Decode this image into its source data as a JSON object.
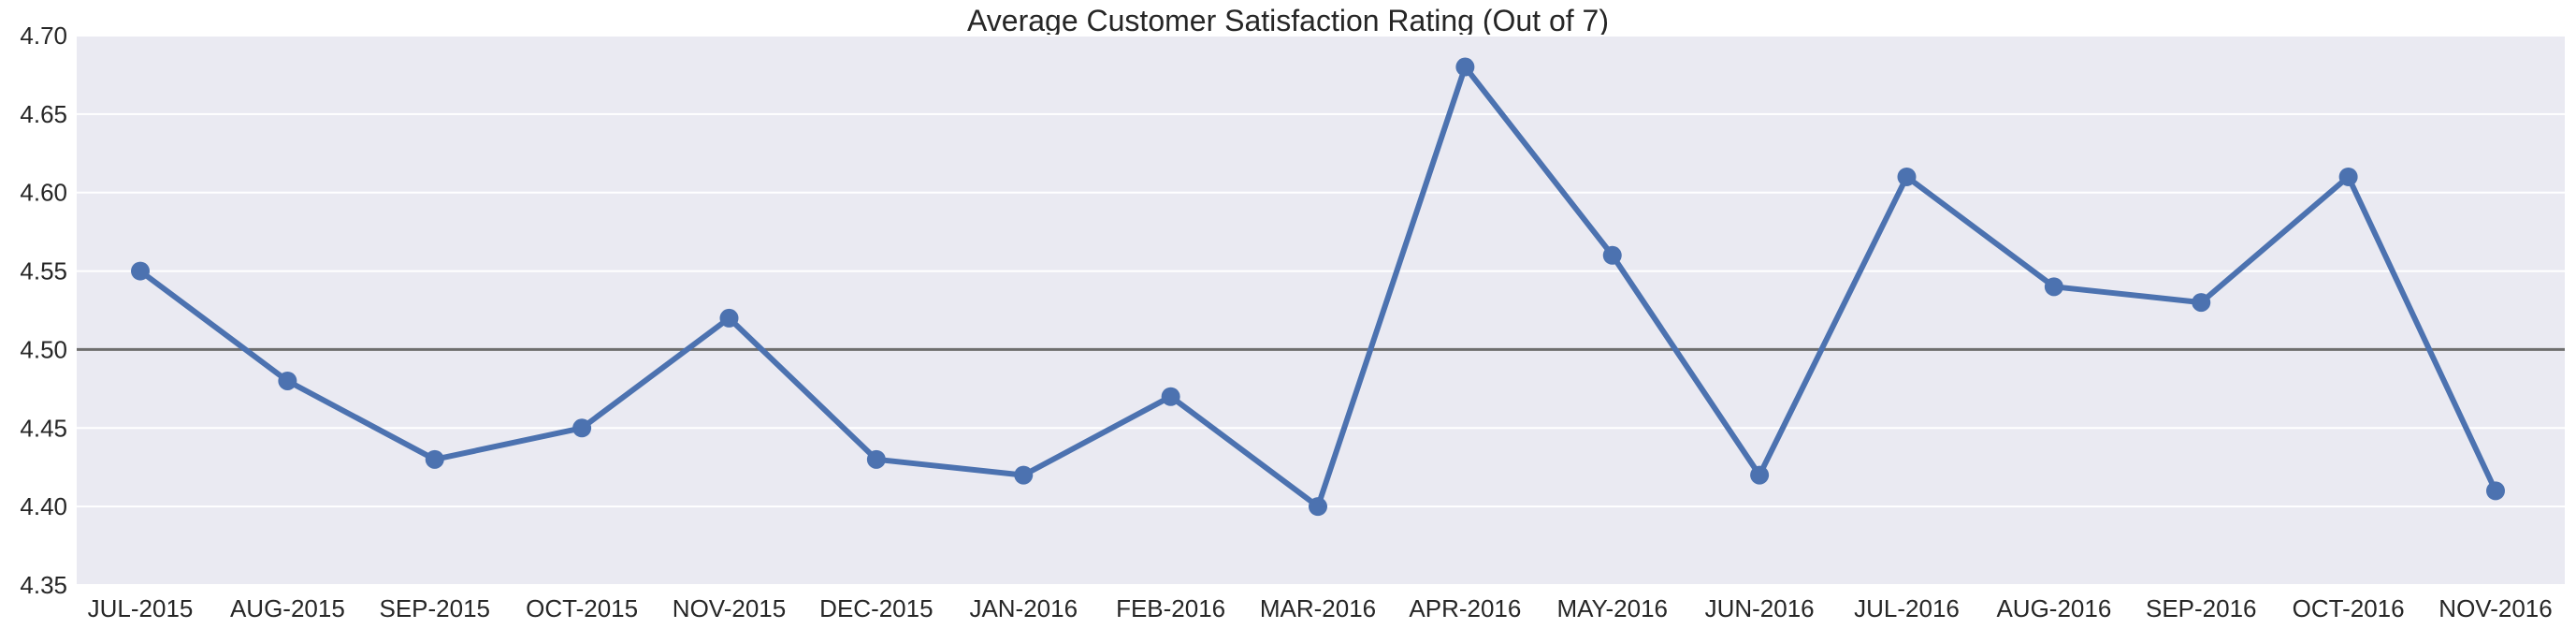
{
  "chart_data": {
    "type": "line",
    "title": "Average Customer Satisfaction Rating (Out of 7)",
    "xlabel": "",
    "ylabel": "",
    "categories": [
      "JUL-2015",
      "AUG-2015",
      "SEP-2015",
      "OCT-2015",
      "NOV-2015",
      "DEC-2015",
      "JAN-2016",
      "FEB-2016",
      "MAR-2016",
      "APR-2016",
      "MAY-2016",
      "JUN-2016",
      "JUL-2016",
      "AUG-2016",
      "SEP-2016",
      "OCT-2016",
      "NOV-2016"
    ],
    "series": [
      {
        "values": [
          4.55,
          4.48,
          4.43,
          4.45,
          4.52,
          4.43,
          4.42,
          4.47,
          4.4,
          4.68,
          4.56,
          4.42,
          4.61,
          4.54,
          4.53,
          4.61,
          4.41
        ]
      }
    ],
    "ylim": [
      4.35,
      4.7
    ],
    "yticks": [
      "4.35",
      "4.40",
      "4.45",
      "4.50",
      "4.55",
      "4.60",
      "4.65",
      "4.70"
    ],
    "reference_line": 4.5,
    "grid": true,
    "colors": {
      "line": "#4c72b0",
      "background": "#eaeaf2",
      "grid": "#ffffff",
      "reference": "#6e6e6e"
    }
  }
}
